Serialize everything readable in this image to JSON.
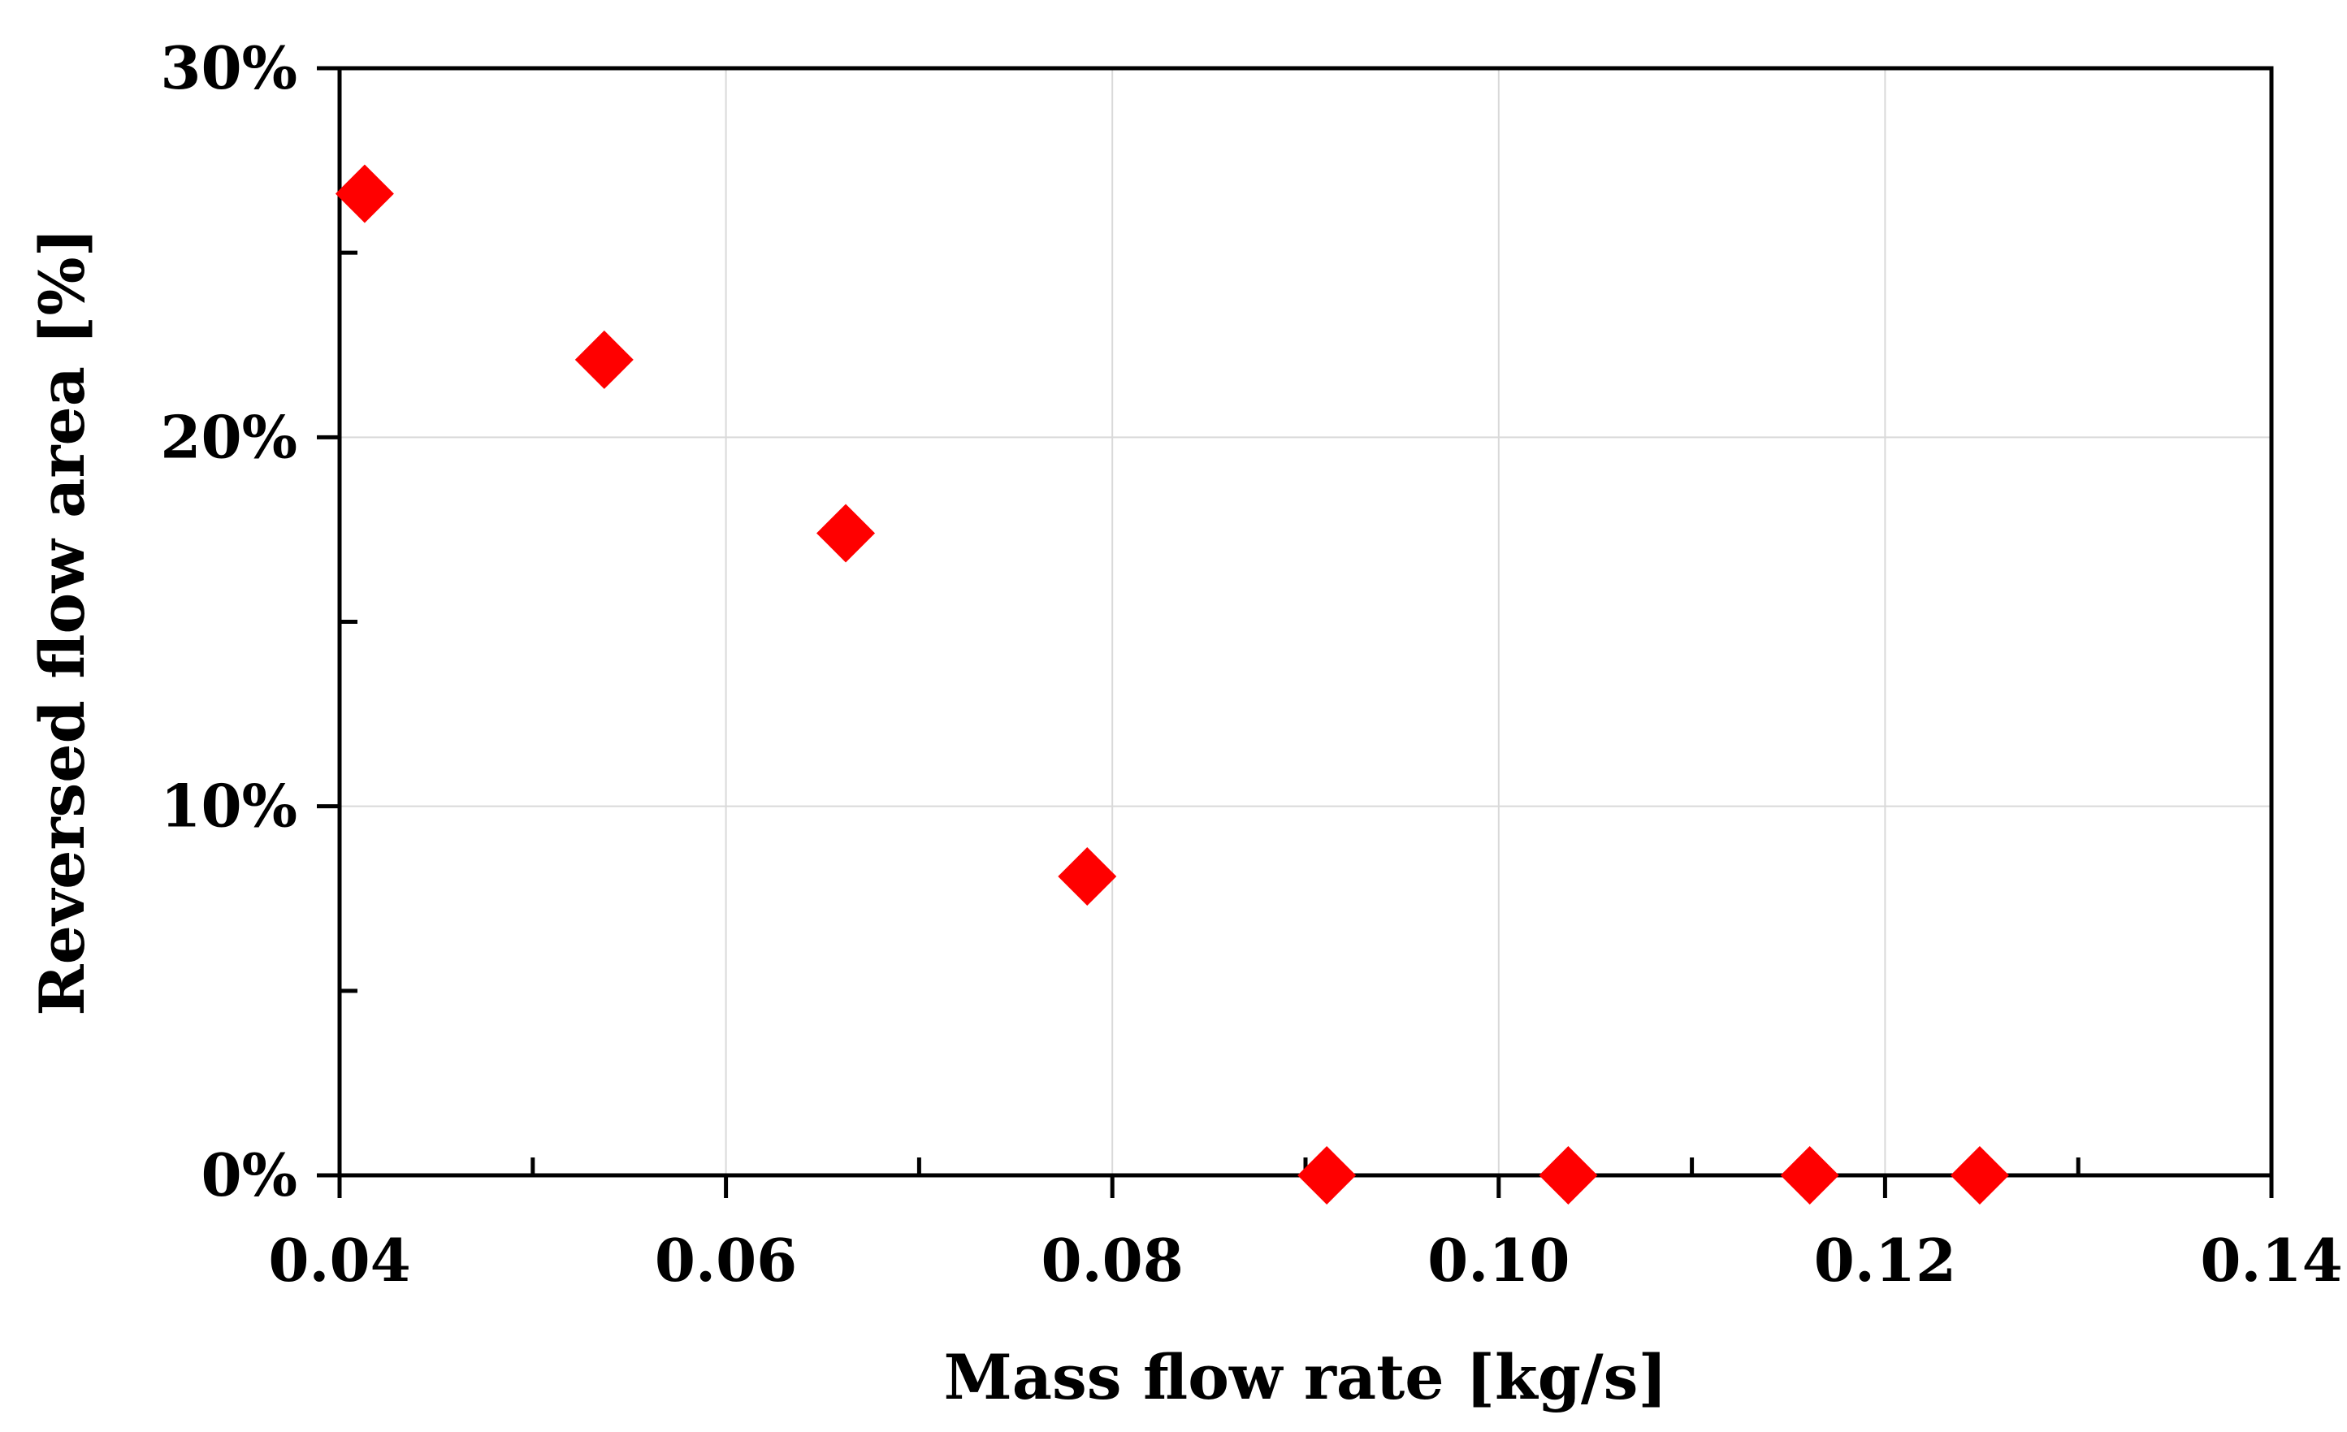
{
  "chart_data": {
    "type": "scatter",
    "title": "",
    "xlabel": "Mass flow rate [kg/s]",
    "ylabel": "Reversed flow area [%]",
    "xlim": [
      0.04,
      0.14
    ],
    "ylim": [
      0,
      30
    ],
    "x_ticks": [
      0.04,
      0.06,
      0.08,
      0.1,
      0.12,
      0.14
    ],
    "x_tick_labels": [
      "0.04",
      "0.06",
      "0.08",
      "0.10",
      "0.12",
      "0.14"
    ],
    "x_minor_ticks": [
      0.05,
      0.07,
      0.09,
      0.11,
      0.13
    ],
    "y_ticks": [
      0,
      10,
      20,
      30
    ],
    "y_tick_labels": [
      "0%",
      "10%",
      "20%",
      "30%"
    ],
    "y_minor_ticks": [
      5,
      15,
      25
    ],
    "grid": true,
    "legend": "none",
    "series": [
      {
        "name": "Reversed flow area",
        "marker": "diamond",
        "color": "#ff0000",
        "points": [
          {
            "x": 0.0413,
            "y": 26.6
          },
          {
            "x": 0.0537,
            "y": 22.1
          },
          {
            "x": 0.0662,
            "y": 17.4
          },
          {
            "x": 0.0787,
            "y": 8.1
          },
          {
            "x": 0.0911,
            "y": 0.0
          },
          {
            "x": 0.1036,
            "y": 0.0
          },
          {
            "x": 0.1161,
            "y": 0.0
          },
          {
            "x": 0.1249,
            "y": 0.0
          }
        ]
      }
    ]
  }
}
